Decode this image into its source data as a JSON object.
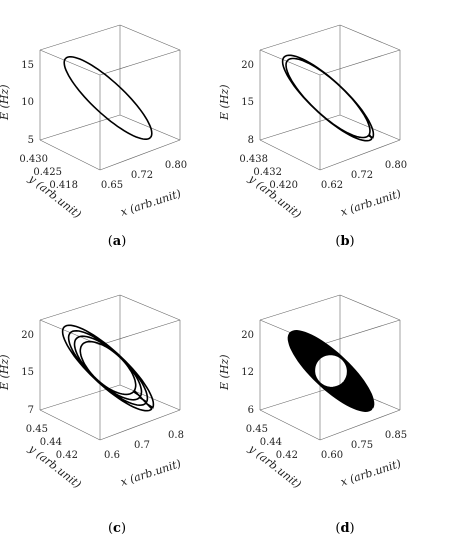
{
  "chart_data": [
    {
      "type": "line",
      "panel": "(a)",
      "panel_letter": "a",
      "xlabel": "x (arb.unit)",
      "ylabel": "y (arb.unit)",
      "zlabel": "E (Hz)",
      "x_ticks": [
        "0.65",
        "0.72",
        "0.80"
      ],
      "y_ticks": [
        "0.430",
        "0.425",
        "0.418"
      ],
      "z_ticks": [
        "15",
        "10",
        "5"
      ],
      "series": [
        {
          "description": "single limit cycle",
          "loops": 1
        }
      ]
    },
    {
      "type": "line",
      "panel": "(b)",
      "panel_letter": "b",
      "xlabel": "x (arb.unit)",
      "ylabel": "y (arb.unit)",
      "zlabel": "E (Hz)",
      "x_ticks": [
        "0.62",
        "0.72",
        "0.80"
      ],
      "y_ticks": [
        "0.438",
        "0.432",
        "0.420"
      ],
      "z_ticks": [
        "20",
        "15",
        "8"
      ],
      "series": [
        {
          "description": "period-2 cycle",
          "loops": 2
        }
      ]
    },
    {
      "type": "line",
      "panel": "(c)",
      "panel_letter": "c",
      "xlabel": "x (arb.unit)",
      "ylabel": "y (arb.unit)",
      "zlabel": "E (Hz)",
      "x_ticks": [
        "0.6",
        "0.7",
        "0.8"
      ],
      "y_ticks": [
        "0.45",
        "0.44",
        "0.42"
      ],
      "z_ticks": [
        "20",
        "15",
        "7"
      ],
      "series": [
        {
          "description": "period-4 cycle",
          "loops": 4
        }
      ]
    },
    {
      "type": "line",
      "panel": "(d)",
      "panel_letter": "d",
      "xlabel": "x (arb.unit)",
      "ylabel": "y (arb.unit)",
      "zlabel": "E (Hz)",
      "x_ticks": [
        "0.60",
        "0.75",
        "0.85"
      ],
      "y_ticks": [
        "0.45",
        "0.44",
        "0.42"
      ],
      "z_ticks": [
        "20",
        "12",
        "6"
      ],
      "series": [
        {
          "description": "chaotic attractor",
          "loops": 40
        }
      ]
    }
  ]
}
